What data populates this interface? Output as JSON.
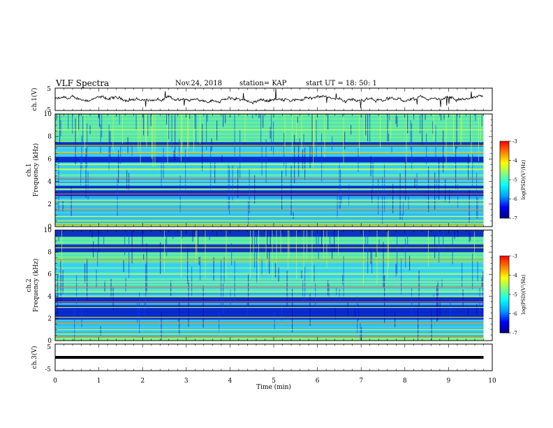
{
  "header": {
    "title": "VLF Spectra",
    "date": "Nov.24, 2018",
    "station": "station= KAP",
    "start": "start  UT =   18: 50: 1"
  },
  "colors": {
    "colormap": [
      "#00007f",
      "#0000ff",
      "#00a0ff",
      "#00ffff",
      "#7fff7f",
      "#ffff00",
      "#ff8000",
      "#ff0000",
      "#ffffff"
    ],
    "trace": "#000000"
  },
  "chart_data": [
    {
      "type": "line",
      "name": "ch.1 waveform",
      "ylabel": "ch.1(V)",
      "ylim": [
        -5,
        5
      ],
      "yticks": [
        "5",
        "-5"
      ],
      "xlim": [
        0,
        10
      ]
    },
    {
      "type": "heatmap",
      "ylabel_top": "ch.1",
      "ylabel": "Frequency (kHz)",
      "ylim": [
        0,
        10
      ],
      "yticks": [
        "0",
        "2",
        "4",
        "6",
        "8",
        "10"
      ],
      "xlim": [
        0,
        9.8
      ],
      "colorbar": {
        "label": "log(PSD)(V²/Hz)",
        "range": [
          -7,
          -3
        ],
        "ticks": [
          "-3",
          "-4",
          "-5",
          "-6",
          "-7"
        ]
      },
      "bright_lines_khz": [
        0.2,
        0.5,
        0.9,
        1.5,
        2.0,
        2.3,
        2.9,
        3.3,
        3.8,
        4.3,
        5.1,
        5.5,
        6.5,
        7.2,
        8.6
      ],
      "dark_bands_khz": [
        [
          2.7,
          3.2
        ],
        [
          3.4,
          3.6
        ],
        [
          5.7,
          6.2
        ],
        [
          7.1,
          7.5
        ]
      ]
    },
    {
      "type": "heatmap",
      "ylabel_top": "ch.2",
      "ylabel": "Frequency (kHz)",
      "ylim": [
        0,
        10
      ],
      "yticks": [
        "0",
        "2",
        "4",
        "6",
        "8",
        "10"
      ],
      "xlim": [
        0,
        9.8
      ],
      "colorbar": {
        "label": "log(PSD)(V²/Hz)",
        "range": [
          -7,
          -3
        ],
        "ticks": [
          "-3",
          "-4",
          "-5",
          "-6",
          "-7"
        ]
      },
      "bright_lines_khz": [
        0.3,
        0.6,
        1.0,
        1.6,
        2.1,
        3.0,
        3.5,
        4.0,
        4.4,
        4.8,
        5.3,
        6.0,
        7.3,
        8.4
      ],
      "dark_bands_khz": [
        [
          1.9,
          3.2
        ],
        [
          3.4,
          3.9
        ],
        [
          8.0,
          8.7
        ],
        [
          9.4,
          10.0
        ]
      ]
    },
    {
      "type": "line",
      "name": "ch.3 waveform",
      "ylabel": "ch.3(V)",
      "ylim": [
        -5,
        5
      ],
      "yticks": [
        "5",
        "-5"
      ],
      "xlim": [
        0,
        10
      ],
      "constant_value_v": 0
    }
  ],
  "xaxis": {
    "label": "Time  (min)",
    "ticks": [
      "0",
      "1",
      "2",
      "3",
      "4",
      "5",
      "6",
      "7",
      "8",
      "9",
      "10"
    ],
    "range": [
      0,
      10
    ]
  }
}
